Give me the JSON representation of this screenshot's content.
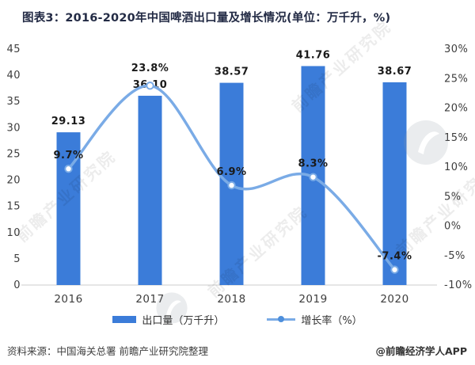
{
  "title": "图表3：2016-2020年中国啤酒出口量及增长情况(单位：万千升，%)",
  "chart_data": {
    "type": "bar+line",
    "title": "图表3：2016-2020年中国啤酒出口量及增长情况(单位：万千升，%)",
    "categories": [
      "2016",
      "2017",
      "2018",
      "2019",
      "2020"
    ],
    "series": [
      {
        "name": "出口量（万千升）",
        "type": "bar",
        "axis": "left",
        "values": [
          29.13,
          36.1,
          38.57,
          41.76,
          38.67
        ],
        "labels": [
          "29.13",
          "36.10",
          "38.57",
          "41.76",
          "38.67"
        ]
      },
      {
        "name": "增长率（%）",
        "type": "line",
        "axis": "right",
        "values": [
          9.7,
          23.8,
          6.9,
          8.3,
          -7.4
        ],
        "labels": [
          "9.7%",
          "23.8%",
          "6.9%",
          "8.3%",
          "-7.4%"
        ]
      }
    ],
    "left_axis": {
      "min": 0,
      "max": 45,
      "step": 5,
      "tick_labels": [
        "45",
        "40",
        "35",
        "30",
        "25",
        "20",
        "15",
        "10",
        "5",
        "0"
      ]
    },
    "right_axis": {
      "min": -10,
      "max": 30,
      "step": 5,
      "tick_labels": [
        "30%",
        "25%",
        "20%",
        "15%",
        "10%",
        "5%",
        "0%",
        "-5%",
        "-10%"
      ]
    },
    "grid": false,
    "legend_position": "bottom"
  },
  "legend": {
    "items": [
      {
        "label": "出口量（万千升）",
        "marker": "bar"
      },
      {
        "label": "增长率（%）",
        "marker": "line-dot"
      }
    ]
  },
  "footer": {
    "source": "资料来源：中国海关总署 前瞻产业研究院整理",
    "credit": "@前瞻经济学人APP"
  },
  "watermark": {
    "text": "前瞻产业研究院"
  },
  "colors": {
    "bar": "#3B7CD9",
    "line": "#7AABE6",
    "marker_fill": "#FFFFFF",
    "legend_dot": "#4E8FDC",
    "title": "#232B45",
    "value_label": "#1A1A1A",
    "axis_text": "#3D3D3D",
    "axis_line": "#CCCCCC",
    "footer_text": "#3F3F3F",
    "watermark_gray": "#9AA2AB"
  }
}
